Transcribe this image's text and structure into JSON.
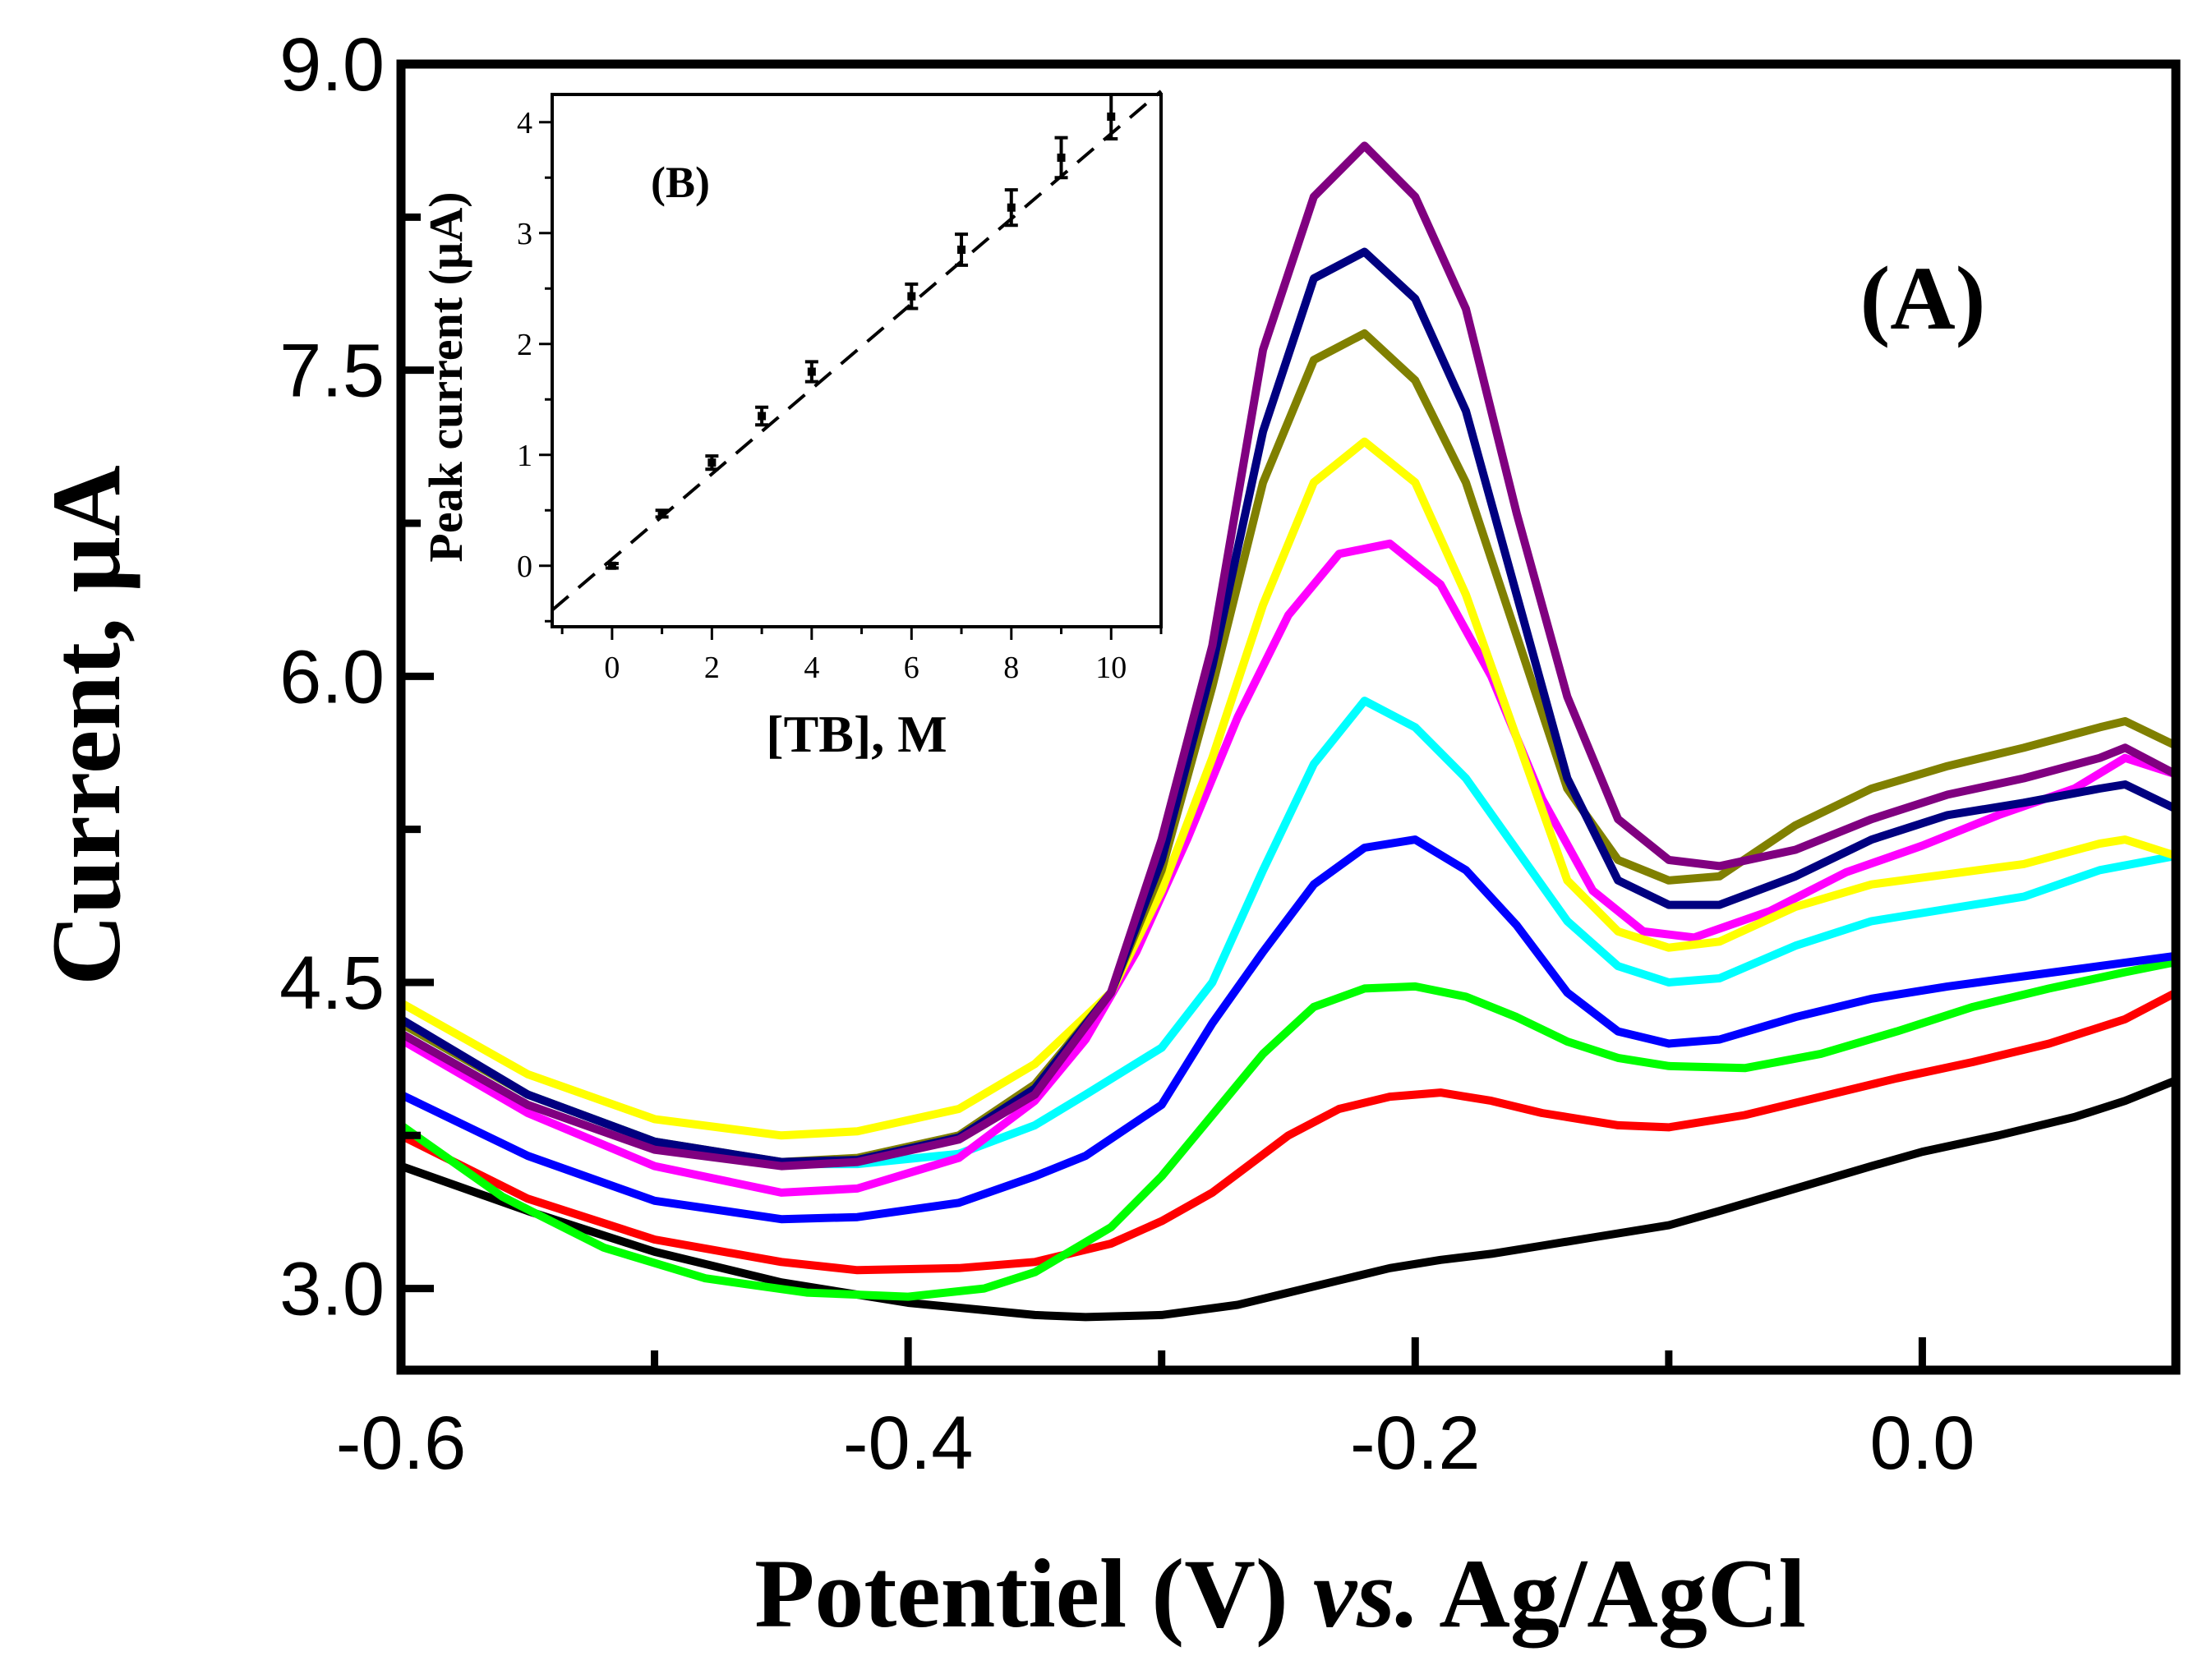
{
  "chart_data": [
    {
      "id": "main",
      "type": "line",
      "panel_label": "(A)",
      "xlabel_parts": [
        "Potentiel (V) ",
        "vs.",
        " Ag/AgCl"
      ],
      "ylabel": "Current, µA",
      "xlim": [
        -0.6,
        0.1
      ],
      "ylim": [
        2.6,
        9.0
      ],
      "xticks": [
        -0.6,
        -0.4,
        -0.2,
        0.0
      ],
      "xtick_labels": [
        "-0.6",
        "-0.4",
        "-0.2",
        "0.0"
      ],
      "yticks": [
        3.0,
        4.5,
        6.0,
        7.5,
        9.0
      ],
      "ytick_labels": [
        "3.0",
        "4.5",
        "6.0",
        "7.5",
        "9.0"
      ],
      "series": [
        {
          "name": "black",
          "color": "#000000",
          "x": [
            -0.6,
            -0.55,
            -0.5,
            -0.45,
            -0.4,
            -0.35,
            -0.33,
            -0.3,
            -0.27,
            -0.25,
            -0.23,
            -0.21,
            -0.19,
            -0.17,
            -0.15,
            -0.13,
            -0.1,
            -0.08,
            -0.05,
            -0.02,
            0.0,
            0.03,
            0.06,
            0.08,
            0.1
          ],
          "y": [
            3.6,
            3.38,
            3.18,
            3.03,
            2.93,
            2.87,
            2.86,
            2.87,
            2.92,
            2.98,
            3.04,
            3.1,
            3.14,
            3.17,
            3.21,
            3.25,
            3.31,
            3.38,
            3.49,
            3.6,
            3.67,
            3.75,
            3.84,
            3.92,
            4.02
          ]
        },
        {
          "name": "red",
          "color": "#ff0000",
          "x": [
            -0.6,
            -0.55,
            -0.5,
            -0.45,
            -0.42,
            -0.38,
            -0.35,
            -0.32,
            -0.3,
            -0.28,
            -0.25,
            -0.23,
            -0.21,
            -0.19,
            -0.17,
            -0.15,
            -0.12,
            -0.1,
            -0.07,
            -0.04,
            -0.01,
            0.02,
            0.05,
            0.08,
            0.1
          ],
          "y": [
            3.75,
            3.44,
            3.24,
            3.13,
            3.09,
            3.1,
            3.13,
            3.22,
            3.33,
            3.47,
            3.75,
            3.88,
            3.94,
            3.96,
            3.92,
            3.86,
            3.8,
            3.79,
            3.85,
            3.94,
            4.03,
            4.11,
            4.2,
            4.32,
            4.45
          ]
        },
        {
          "name": "green",
          "color": "#00ff00",
          "x": [
            -0.6,
            -0.56,
            -0.52,
            -0.48,
            -0.44,
            -0.4,
            -0.37,
            -0.35,
            -0.32,
            -0.3,
            -0.28,
            -0.26,
            -0.24,
            -0.22,
            -0.2,
            -0.18,
            -0.16,
            -0.14,
            -0.12,
            -0.1,
            -0.07,
            -0.04,
            -0.01,
            0.02,
            0.05,
            0.08,
            0.1
          ],
          "y": [
            3.8,
            3.45,
            3.2,
            3.05,
            2.98,
            2.96,
            3.0,
            3.08,
            3.3,
            3.55,
            3.85,
            4.15,
            4.38,
            4.47,
            4.48,
            4.43,
            4.33,
            4.21,
            4.13,
            4.09,
            4.08,
            4.15,
            4.26,
            4.38,
            4.47,
            4.55,
            4.6
          ]
        },
        {
          "name": "blue",
          "color": "#0000ff",
          "x": [
            -0.6,
            -0.55,
            -0.5,
            -0.45,
            -0.42,
            -0.38,
            -0.35,
            -0.33,
            -0.3,
            -0.28,
            -0.26,
            -0.24,
            -0.22,
            -0.2,
            -0.18,
            -0.16,
            -0.14,
            -0.12,
            -0.1,
            -0.08,
            -0.05,
            -0.02,
            0.01,
            0.04,
            0.07,
            0.1
          ],
          "y": [
            3.95,
            3.65,
            3.43,
            3.34,
            3.35,
            3.42,
            3.55,
            3.65,
            3.9,
            4.3,
            4.65,
            4.98,
            5.16,
            5.2,
            5.05,
            4.78,
            4.45,
            4.26,
            4.2,
            4.22,
            4.33,
            4.42,
            4.48,
            4.53,
            4.58,
            4.63
          ]
        },
        {
          "name": "cyan",
          "color": "#00ffff",
          "x": [
            -0.6,
            -0.55,
            -0.5,
            -0.45,
            -0.42,
            -0.38,
            -0.35,
            -0.33,
            -0.3,
            -0.28,
            -0.26,
            -0.24,
            -0.22,
            -0.2,
            -0.18,
            -0.16,
            -0.14,
            -0.12,
            -0.1,
            -0.08,
            -0.05,
            -0.02,
            0.01,
            0.04,
            0.07,
            0.1
          ],
          "y": [
            4.3,
            3.95,
            3.72,
            3.61,
            3.61,
            3.66,
            3.8,
            3.95,
            4.18,
            4.5,
            5.05,
            5.57,
            5.88,
            5.75,
            5.5,
            5.15,
            4.8,
            4.58,
            4.5,
            4.52,
            4.68,
            4.8,
            4.86,
            4.92,
            5.05,
            5.12
          ]
        },
        {
          "name": "magenta",
          "color": "#ff00ff",
          "x": [
            -0.6,
            -0.55,
            -0.5,
            -0.45,
            -0.42,
            -0.38,
            -0.35,
            -0.33,
            -0.31,
            -0.29,
            -0.27,
            -0.25,
            -0.23,
            -0.21,
            -0.19,
            -0.17,
            -0.15,
            -0.13,
            -0.11,
            -0.09,
            -0.06,
            -0.03,
            0.0,
            0.03,
            0.06,
            0.08,
            0.1
          ],
          "y": [
            4.22,
            3.86,
            3.6,
            3.47,
            3.49,
            3.64,
            3.92,
            4.22,
            4.65,
            5.2,
            5.8,
            6.3,
            6.6,
            6.65,
            6.45,
            6.0,
            5.4,
            4.95,
            4.75,
            4.72,
            4.85,
            5.04,
            5.17,
            5.32,
            5.45,
            5.6,
            5.52
          ]
        },
        {
          "name": "yellow",
          "color": "#ffff00",
          "x": [
            -0.6,
            -0.55,
            -0.5,
            -0.45,
            -0.42,
            -0.38,
            -0.35,
            -0.32,
            -0.3,
            -0.28,
            -0.26,
            -0.24,
            -0.22,
            -0.2,
            -0.18,
            -0.16,
            -0.14,
            -0.12,
            -0.1,
            -0.08,
            -0.05,
            -0.02,
            0.01,
            0.04,
            0.07,
            0.08,
            0.1
          ],
          "y": [
            4.4,
            4.05,
            3.83,
            3.75,
            3.77,
            3.88,
            4.1,
            4.45,
            4.95,
            5.6,
            6.35,
            6.95,
            7.15,
            6.95,
            6.4,
            5.7,
            5.0,
            4.75,
            4.67,
            4.7,
            4.87,
            4.98,
            5.03,
            5.08,
            5.18,
            5.2,
            5.12
          ]
        },
        {
          "name": "olive",
          "color": "#808000",
          "x": [
            -0.6,
            -0.55,
            -0.5,
            -0.45,
            -0.42,
            -0.38,
            -0.35,
            -0.32,
            -0.3,
            -0.28,
            -0.26,
            -0.24,
            -0.22,
            -0.2,
            -0.18,
            -0.16,
            -0.14,
            -0.12,
            -0.1,
            -0.08,
            -0.05,
            -0.02,
            0.01,
            0.04,
            0.07,
            0.08,
            0.1
          ],
          "y": [
            4.3,
            3.95,
            3.72,
            3.62,
            3.64,
            3.75,
            4.0,
            4.45,
            5.05,
            5.95,
            6.95,
            7.55,
            7.68,
            7.45,
            6.95,
            6.2,
            5.45,
            5.1,
            5.0,
            5.02,
            5.27,
            5.45,
            5.56,
            5.65,
            5.75,
            5.78,
            5.66
          ]
        },
        {
          "name": "navy",
          "color": "#000080",
          "x": [
            -0.6,
            -0.55,
            -0.5,
            -0.45,
            -0.42,
            -0.38,
            -0.35,
            -0.32,
            -0.3,
            -0.28,
            -0.26,
            -0.24,
            -0.22,
            -0.2,
            -0.18,
            -0.16,
            -0.14,
            -0.12,
            -0.1,
            -0.08,
            -0.05,
            -0.02,
            0.01,
            0.04,
            0.07,
            0.08,
            0.1
          ],
          "y": [
            4.32,
            3.95,
            3.72,
            3.62,
            3.63,
            3.74,
            3.98,
            4.45,
            5.1,
            6.05,
            7.2,
            7.95,
            8.08,
            7.85,
            7.3,
            6.4,
            5.5,
            5.0,
            4.88,
            4.88,
            5.02,
            5.2,
            5.32,
            5.38,
            5.45,
            5.47,
            5.35
          ]
        },
        {
          "name": "purple",
          "color": "#800080",
          "x": [
            -0.6,
            -0.55,
            -0.5,
            -0.45,
            -0.42,
            -0.38,
            -0.35,
            -0.32,
            -0.3,
            -0.28,
            -0.26,
            -0.24,
            -0.22,
            -0.2,
            -0.18,
            -0.16,
            -0.14,
            -0.12,
            -0.1,
            -0.08,
            -0.05,
            -0.02,
            0.01,
            0.04,
            0.07,
            0.08,
            0.1
          ],
          "y": [
            4.25,
            3.9,
            3.68,
            3.6,
            3.62,
            3.73,
            3.95,
            4.45,
            5.2,
            6.15,
            7.6,
            8.35,
            8.6,
            8.35,
            7.8,
            6.8,
            5.9,
            5.3,
            5.1,
            5.07,
            5.15,
            5.3,
            5.42,
            5.5,
            5.6,
            5.65,
            5.52
          ]
        }
      ]
    },
    {
      "id": "inset",
      "type": "scatter",
      "panel_label": "(B)",
      "xlabel": "[TB], M",
      "ylabel": "Peak current (µA)",
      "xlim": [
        -1.2,
        11.0
      ],
      "ylim": [
        -0.55,
        4.25
      ],
      "xticks": [
        0,
        2,
        4,
        6,
        8,
        10
      ],
      "xtick_labels": [
        "0",
        "2",
        "4",
        "6",
        "8",
        "10"
      ],
      "yticks": [
        0,
        1,
        2,
        3,
        4
      ],
      "ytick_labels": [
        "0",
        "1",
        "2",
        "3",
        "4"
      ],
      "points": [
        {
          "x": 0,
          "y": 0.0,
          "err": 0.02
        },
        {
          "x": 1,
          "y": 0.47,
          "err": 0.03
        },
        {
          "x": 2,
          "y": 0.93,
          "err": 0.06
        },
        {
          "x": 3,
          "y": 1.35,
          "err": 0.08
        },
        {
          "x": 4,
          "y": 1.75,
          "err": 0.09
        },
        {
          "x": 6,
          "y": 2.43,
          "err": 0.11
        },
        {
          "x": 7,
          "y": 2.85,
          "err": 0.14
        },
        {
          "x": 8,
          "y": 3.23,
          "err": 0.16
        },
        {
          "x": 9,
          "y": 3.68,
          "err": 0.18
        },
        {
          "x": 10,
          "y": 4.05,
          "err": 0.2
        }
      ],
      "fit_line": {
        "style": "dashed",
        "x": [
          -1.2,
          11.0
        ],
        "y": [
          -0.4,
          4.28
        ]
      }
    }
  ]
}
